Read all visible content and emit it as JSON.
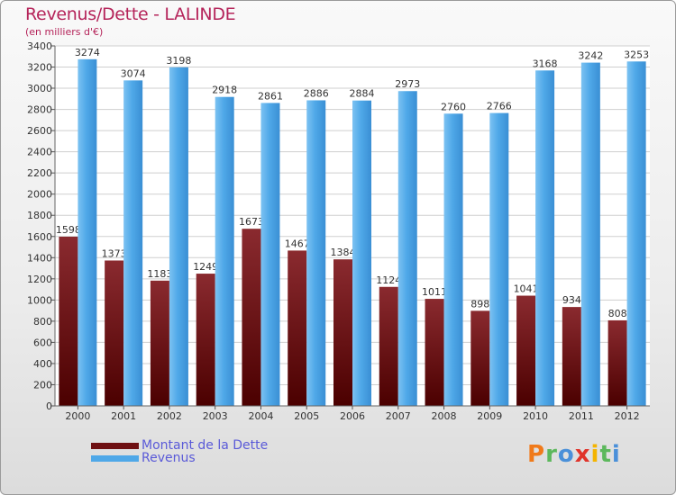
{
  "chart_data": {
    "type": "bar",
    "title": "Revenus/Dette - LALINDE",
    "subtitle": "(en milliers d'€)",
    "categories": [
      "2000",
      "2001",
      "2002",
      "2003",
      "2004",
      "2005",
      "2006",
      "2007",
      "2008",
      "2009",
      "2010",
      "2011",
      "2012"
    ],
    "series": [
      {
        "name": "Montant de la Dette",
        "color": "#6e0f12",
        "values": [
          1598,
          1373,
          1183,
          1249,
          1673,
          1467,
          1384,
          1124,
          1011,
          898,
          1041,
          934,
          808
        ],
        "labels": [
          "1598",
          "1373",
          "1183",
          "1249",
          "1673",
          "1467",
          "1384",
          "1124",
          "1011",
          "898",
          "1041",
          "934",
          "808"
        ]
      },
      {
        "name": "Revenus",
        "color": "#4fa8e8",
        "values": [
          3274,
          3074,
          3198,
          2918,
          2861,
          2886,
          2884,
          2973,
          2760,
          2766,
          3168,
          3242,
          3253
        ],
        "labels": [
          "3274",
          "3074",
          "3198",
          "2918",
          "2861",
          "2886",
          "2884",
          "2973",
          "2760",
          "2766",
          "3168",
          "3242",
          "3253"
        ]
      }
    ],
    "yticks": [
      0,
      200,
      400,
      600,
      800,
      1000,
      1200,
      1400,
      1600,
      1800,
      2000,
      2200,
      2400,
      2600,
      2800,
      3000,
      3200,
      3400
    ],
    "ylim": [
      0,
      3400
    ],
    "grid": true,
    "legend_position": "bottom-left"
  },
  "brand": {
    "letters": [
      "P",
      "r",
      "o",
      "x",
      "i",
      "t",
      "i"
    ],
    "colors": [
      "#f07a1a",
      "#5cb85c",
      "#4a90d9",
      "#e0332a",
      "#f4b400",
      "#5cb85c",
      "#4a90d9"
    ]
  }
}
